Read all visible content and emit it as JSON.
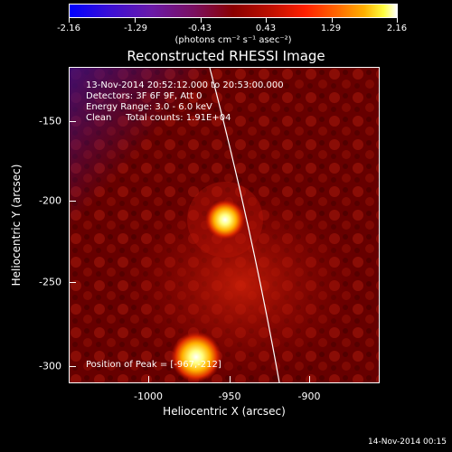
{
  "colorbar": {
    "tick_labels": [
      "-2.16",
      "-1.29",
      "-0.43",
      "0.43",
      "1.29",
      "2.16"
    ],
    "unit_label": "(photons cm⁻² s⁻¹ asec⁻²)"
  },
  "title": "Reconstructed RHESSI Image",
  "info": {
    "time_range": "13-Nov-2014 20:52:12.000 to 20:53:00.000",
    "detectors": "Detectors: 3F 6F 9F, Att 0",
    "energy": "Energy Range: 3.0 - 6.0 keV",
    "clean": "Clean     Total counts: 1.91E+04",
    "peak": "Position of Peak = [-967,-212]"
  },
  "axes": {
    "x_label": "Heliocentric X (arcsec)",
    "y_label": "Heliocentric Y (arcsec)",
    "x_ticks": [
      "-1000",
      "-950",
      "-900"
    ],
    "y_ticks": [
      "-150",
      "-200",
      "-250",
      "-300"
    ]
  },
  "footer_date": "14-Nov-2014 00:15"
}
